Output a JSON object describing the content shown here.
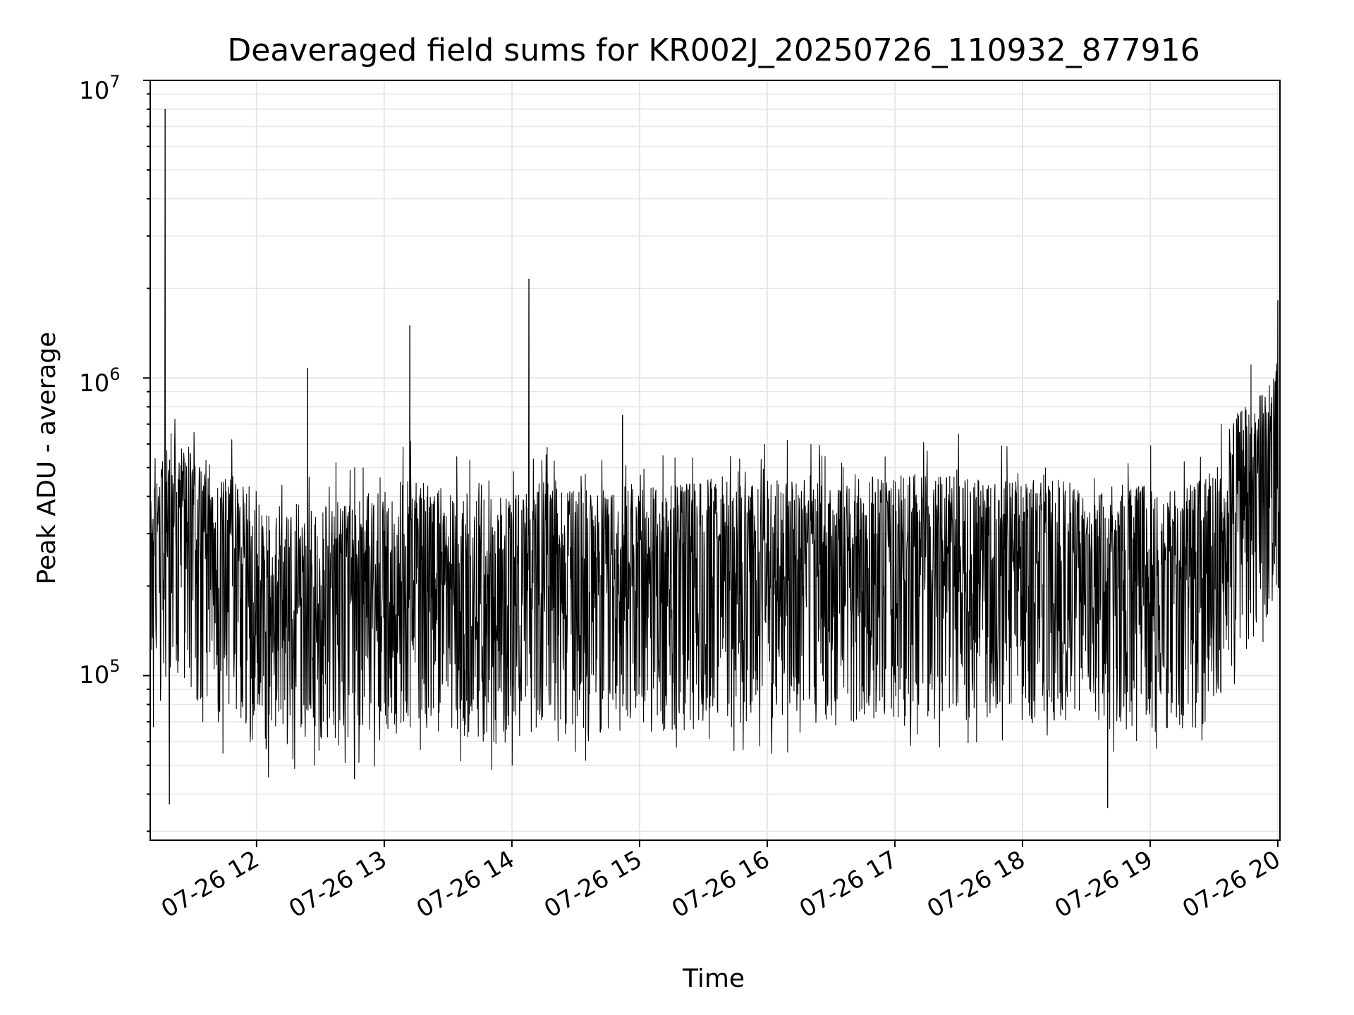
{
  "chart_data": {
    "type": "line",
    "title": "Deaveraged field sums for KR002J_20250726_110932_877916",
    "xlabel": "Time",
    "ylabel": "Peak ADU - average",
    "yscale": "log",
    "ylim": [
      28000,
      10000000
    ],
    "xlim": [
      "07-26 11:10",
      "07-26 20:01"
    ],
    "grid": true,
    "line_color": "#000000",
    "grid_color": "#e6e6e6",
    "x_tick_labels": [
      "07-26 12",
      "07-26 13",
      "07-26 14",
      "07-26 15",
      "07-26 16",
      "07-26 17",
      "07-26 18",
      "07-26 19",
      "07-26 20"
    ],
    "y_tick_labels": [
      {
        "base": "10",
        "exp": "5"
      },
      {
        "base": "10",
        "exp": "6"
      },
      {
        "base": "10",
        "exp": "7"
      }
    ],
    "series": [
      {
        "x": [
          "07-26 11:10",
          "07-26 11:20",
          "07-26 11:30",
          "07-26 11:40",
          "07-26 11:50",
          "07-26 12:00",
          "07-26 12:10",
          "07-26 12:20",
          "07-26 12:30",
          "07-26 12:40",
          "07-26 12:50",
          "07-26 13:00",
          "07-26 13:10",
          "07-26 13:20",
          "07-26 13:30",
          "07-26 13:40",
          "07-26 13:50",
          "07-26 14:00",
          "07-26 14:10",
          "07-26 14:20",
          "07-26 14:30",
          "07-26 14:40",
          "07-26 14:50",
          "07-26 15:00",
          "07-26 15:10",
          "07-26 15:20",
          "07-26 15:30",
          "07-26 15:40",
          "07-26 15:50",
          "07-26 16:00",
          "07-26 16:10",
          "07-26 16:20",
          "07-26 16:30",
          "07-26 16:40",
          "07-26 16:50",
          "07-26 17:00",
          "07-26 17:10",
          "07-26 17:20",
          "07-26 17:30",
          "07-26 17:40",
          "07-26 17:50",
          "07-26 18:00",
          "07-26 18:10",
          "07-26 18:20",
          "07-26 18:30",
          "07-26 18:40",
          "07-26 18:50",
          "07-26 19:00",
          "07-26 19:10",
          "07-26 19:20",
          "07-26 19:30",
          "07-26 19:40",
          "07-26 19:50",
          "07-26 20:00"
        ],
        "y": [
          200000,
          350000,
          300000,
          230000,
          250000,
          200000,
          190000,
          200000,
          210000,
          200000,
          210000,
          230000,
          240000,
          230000,
          220000,
          220000,
          210000,
          210000,
          230000,
          240000,
          230000,
          220000,
          230000,
          220000,
          230000,
          230000,
          240000,
          250000,
          240000,
          240000,
          240000,
          240000,
          250000,
          250000,
          250000,
          250000,
          250000,
          250000,
          250000,
          240000,
          240000,
          240000,
          240000,
          240000,
          230000,
          230000,
          230000,
          230000,
          230000,
          230000,
          260000,
          420000,
          450000,
          600000
        ]
      }
    ],
    "spikes": [
      {
        "x": "07-26 11:17",
        "y": 8000000
      },
      {
        "x": "07-26 11:19",
        "y": 37000
      },
      {
        "x": "07-26 12:24",
        "y": 1080000
      },
      {
        "x": "07-26 12:46",
        "y": 45000
      },
      {
        "x": "07-26 13:12",
        "y": 1500000
      },
      {
        "x": "07-26 14:08",
        "y": 2150000
      },
      {
        "x": "07-26 14:52",
        "y": 750000
      },
      {
        "x": "07-26 18:40",
        "y": 36000
      },
      {
        "x": "07-26 20:00",
        "y": 1820000
      }
    ]
  }
}
